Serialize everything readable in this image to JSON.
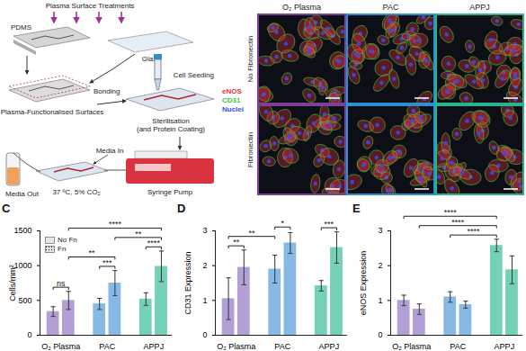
{
  "schematic": {
    "title": "Plasma Surface Treatments",
    "pdms": "PDMS",
    "glass": "Glass",
    "bonding": "Bonding",
    "surfaces": "Plasma-Functionalised Surfaces",
    "seeding": "Cell Seeding",
    "sterilisation": [
      "Sterilisation",
      "(and Protein Coating)"
    ],
    "media_in": "Media In",
    "media_out": "Media Out",
    "incubation": "37 ºC, 5% CO₂",
    "pump": "Syringe Pump"
  },
  "micrographs": {
    "columns": [
      {
        "label": "O₂ Plasma",
        "color": "#7e3f98"
      },
      {
        "label": "PAC",
        "color": "#2b8fd1"
      },
      {
        "label": "APPJ",
        "color": "#27b48c"
      }
    ],
    "rows": [
      "No Fibronectin",
      "Fibronectin"
    ],
    "channels": [
      {
        "label": "eNOS",
        "color": "#e8303a"
      },
      {
        "label": "CD31",
        "color": "#3fc43f"
      },
      {
        "label": "Nuclei",
        "color": "#3a4bd8"
      }
    ]
  },
  "chart_data": [
    {
      "type": "bar",
      "title": "C",
      "y_label": "Cells/mm²",
      "categories": [
        "O₂ Plasma",
        "PAC",
        "APPJ"
      ],
      "colors": [
        "#b29fd6",
        "#86b9e3",
        "#74d0b6"
      ],
      "series": [
        {
          "name": "No Fn",
          "color": "#e8e8e8",
          "values": [
            340,
            450,
            520
          ],
          "errors": [
            70,
            80,
            90
          ]
        },
        {
          "name": "Fn",
          "color": "#e8e8e8",
          "values": [
            500,
            750,
            990
          ],
          "errors": [
            130,
            180,
            220
          ]
        }
      ],
      "ylim": [
        0,
        1500
      ],
      "yticks": [
        0,
        500,
        1000,
        1500
      ],
      "legend": "top-left",
      "significance": [
        {
          "from": [
            "O₂ Plasma",
            "No Fn"
          ],
          "to": [
            "O₂ Plasma",
            "Fn"
          ],
          "label": "ns"
        },
        {
          "from": [
            "PAC",
            "No Fn"
          ],
          "to": [
            "PAC",
            "Fn"
          ],
          "label": "***"
        },
        {
          "from": [
            "APPJ",
            "No Fn"
          ],
          "to": [
            "APPJ",
            "Fn"
          ],
          "label": "****"
        },
        {
          "from": [
            "O₂ Plasma",
            "Fn"
          ],
          "to": [
            "PAC",
            "Fn"
          ],
          "label": "**"
        },
        {
          "from": [
            "PAC",
            "Fn"
          ],
          "to": [
            "APPJ",
            "Fn"
          ],
          "label": "**"
        },
        {
          "from": [
            "O₂ Plasma",
            "Fn"
          ],
          "to": [
            "APPJ",
            "Fn"
          ],
          "label": "****"
        }
      ]
    },
    {
      "type": "bar",
      "title": "D",
      "y_label": "CD31 Expression",
      "categories": [
        "O₂ Plasma",
        "PAC",
        "APPJ"
      ],
      "colors": [
        "#b29fd6",
        "#86b9e3",
        "#74d0b6"
      ],
      "series": [
        {
          "name": "No Fn",
          "color": "#e8e8e8",
          "values": [
            1.05,
            1.9,
            1.42
          ],
          "errors": [
            0.6,
            0.4,
            0.15
          ]
        },
        {
          "name": "Fn",
          "color": "#e8e8e8",
          "values": [
            1.95,
            2.65,
            2.52
          ],
          "errors": [
            0.5,
            0.3,
            0.45
          ]
        }
      ],
      "ylim": [
        0,
        3
      ],
      "yticks": [
        0,
        1,
        2,
        3
      ],
      "significance": [
        {
          "from": [
            "O₂ Plasma",
            "No Fn"
          ],
          "to": [
            "O₂ Plasma",
            "Fn"
          ],
          "label": "**"
        },
        {
          "from": [
            "O₂ Plasma",
            "No Fn"
          ],
          "to": [
            "PAC",
            "No Fn"
          ],
          "label": "**"
        },
        {
          "from": [
            "PAC",
            "No Fn"
          ],
          "to": [
            "PAC",
            "Fn"
          ],
          "label": "*"
        },
        {
          "from": [
            "APPJ",
            "No Fn"
          ],
          "to": [
            "APPJ",
            "Fn"
          ],
          "label": "***"
        }
      ]
    },
    {
      "type": "bar",
      "title": "E",
      "y_label": "eNOS Expression",
      "categories": [
        "O₂ Plasma",
        "PAC",
        "APPJ"
      ],
      "colors": [
        "#b29fd6",
        "#86b9e3",
        "#74d0b6"
      ],
      "series": [
        {
          "name": "No Fn",
          "color": "#e8e8e8",
          "values": [
            1.0,
            1.1,
            2.58
          ],
          "errors": [
            0.15,
            0.15,
            0.18
          ]
        },
        {
          "name": "Fn",
          "color": "#e8e8e8",
          "values": [
            0.75,
            0.88,
            1.88
          ],
          "errors": [
            0.15,
            0.1,
            0.4
          ]
        }
      ],
      "ylim": [
        0,
        3
      ],
      "yticks": [
        0,
        1,
        2,
        3
      ],
      "significance": [
        {
          "from": [
            "PAC",
            "No Fn"
          ],
          "to": [
            "APPJ",
            "No Fn"
          ],
          "label": "****"
        },
        {
          "from": [
            "O₂ Plasma",
            "Fn"
          ],
          "to": [
            "APPJ",
            "No Fn"
          ],
          "label": "****"
        },
        {
          "from": [
            "O₂ Plasma",
            "No Fn"
          ],
          "to": [
            "APPJ",
            "No Fn"
          ],
          "label": "****"
        }
      ]
    }
  ]
}
